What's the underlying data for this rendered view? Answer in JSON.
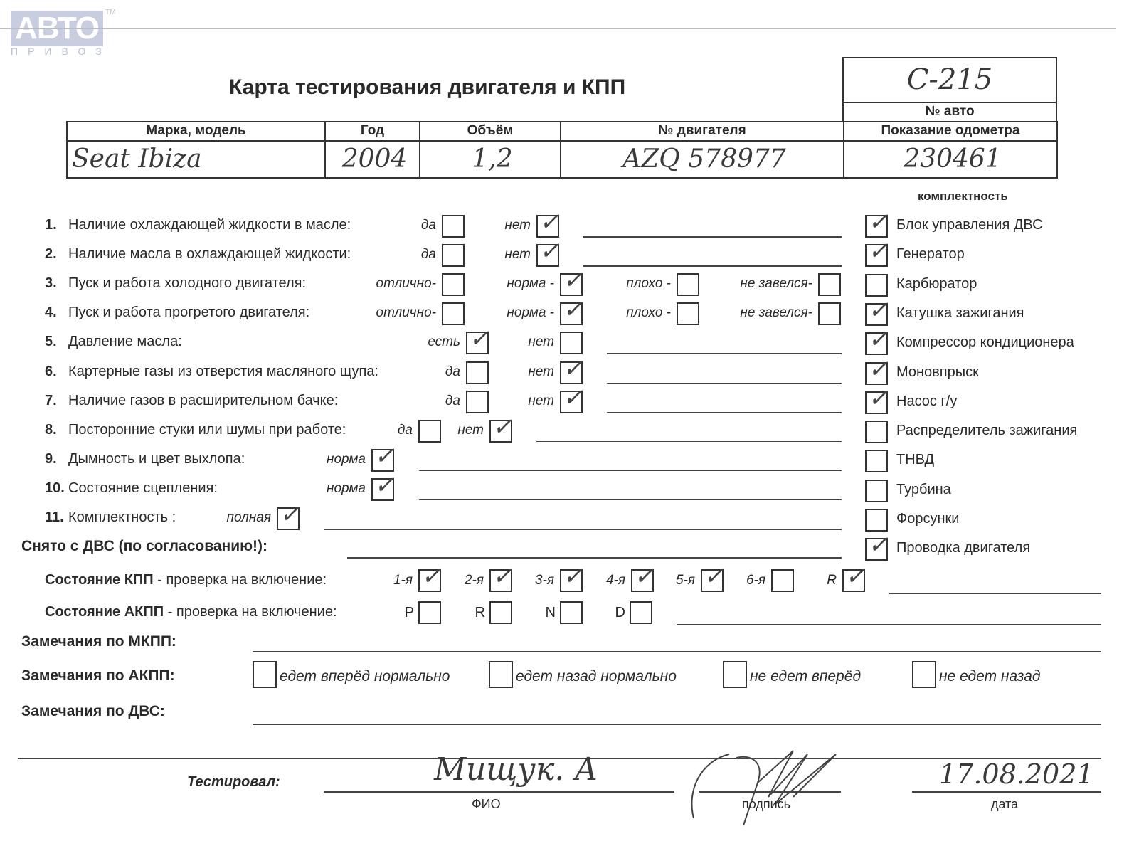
{
  "logo": {
    "text": "АВТО",
    "sub": "ПРИВОЗ",
    "tm": "TM"
  },
  "title": "Карта тестирования двигателя  и КПП",
  "car_no": {
    "value": "С-215",
    "label": "№ авто"
  },
  "table": {
    "headers": [
      "Марка, модель",
      "Год",
      "Объём",
      "№ двигателя",
      "Показание одометра"
    ],
    "values": [
      "Seat Ibiza",
      "2004",
      "1,2",
      "AZQ 578977",
      "230461"
    ]
  },
  "completeness": {
    "title": "комплектность",
    "items": [
      {
        "label": "Блок управления ДВС",
        "checked": true
      },
      {
        "label": "Генератор",
        "checked": true
      },
      {
        "label": "Карбюратор",
        "checked": false
      },
      {
        "label": "Катушка зажигания",
        "checked": true
      },
      {
        "label": "Компрессор кондиционера",
        "checked": true
      },
      {
        "label": "Моновпрыск",
        "checked": true
      },
      {
        "label": "Насос г/у",
        "checked": true
      },
      {
        "label": "Распределитель зажигания",
        "checked": false
      },
      {
        "label": "ТНВД",
        "checked": false
      },
      {
        "label": "Турбина",
        "checked": false
      },
      {
        "label": "Форсунки",
        "checked": false
      },
      {
        "label": "Проводка двигателя",
        "checked": true
      }
    ]
  },
  "questions": [
    {
      "num": "1.",
      "label": "Наличие охлаждающей жидкости в масле:",
      "options": [
        {
          "label": "да",
          "checked": false
        },
        {
          "label": "нет",
          "checked": true
        }
      ]
    },
    {
      "num": "2.",
      "label": "Наличие масла в охлаждающей жидкости:",
      "options": [
        {
          "label": "да",
          "checked": false
        },
        {
          "label": "нет",
          "checked": true
        }
      ]
    },
    {
      "num": "3.",
      "label": "Пуск и работа холодного двигателя:",
      "options": [
        {
          "label": "отлично-",
          "checked": false
        },
        {
          "label": "норма -",
          "checked": true
        },
        {
          "label": "плохо -",
          "checked": false
        },
        {
          "label": "не завелся-",
          "checked": false
        }
      ]
    },
    {
      "num": "4.",
      "label": "Пуск и работа прогретого двигателя:",
      "options": [
        {
          "label": "отлично-",
          "checked": false
        },
        {
          "label": "норма -",
          "checked": true
        },
        {
          "label": "плохо -",
          "checked": false
        },
        {
          "label": "не завелся-",
          "checked": false
        }
      ]
    },
    {
      "num": "5.",
      "label": "Давление масла:",
      "options": [
        {
          "label": "есть",
          "checked": true
        },
        {
          "label": "нет",
          "checked": false
        }
      ]
    },
    {
      "num": "6.",
      "label": "Картерные газы из отверстия масляного щупа:",
      "options": [
        {
          "label": "да",
          "checked": false
        },
        {
          "label": "нет",
          "checked": true
        }
      ]
    },
    {
      "num": "7.",
      "label": "Наличие газов в расширительном бачке:",
      "options": [
        {
          "label": "да",
          "checked": false
        },
        {
          "label": "нет",
          "checked": true
        }
      ]
    },
    {
      "num": "8.",
      "label": "Посторонние стуки или шумы при работе:",
      "options": [
        {
          "label": "да",
          "checked": false
        },
        {
          "label": "нет",
          "checked": true
        }
      ]
    },
    {
      "num": "9.",
      "label": "Дымность и цвет выхлопа:",
      "options": [
        {
          "label": "норма",
          "checked": true
        }
      ]
    },
    {
      "num": "10.",
      "label": "Состояние сцепления:",
      "options": [
        {
          "label": "норма",
          "checked": true
        }
      ]
    },
    {
      "num": "11.",
      "label": "Комплектность :",
      "options": [
        {
          "label": "полная",
          "checked": true
        }
      ]
    }
  ],
  "removed": "Снято с ДВС (по согласованию!):",
  "manual": {
    "label_bold": "Состояние КПП",
    "label_rest": " - проверка на включение:",
    "gears": [
      {
        "label": "1-я",
        "checked": true
      },
      {
        "label": "2-я",
        "checked": true
      },
      {
        "label": "3-я",
        "checked": true
      },
      {
        "label": "4-я",
        "checked": true
      },
      {
        "label": "5-я",
        "checked": true
      },
      {
        "label": "6-я",
        "checked": false
      },
      {
        "label": "R",
        "checked": true
      }
    ]
  },
  "auto": {
    "label_bold": "Состояние АКПП",
    "label_rest": " - проверка на включение:",
    "gears": [
      {
        "label": "P",
        "checked": false
      },
      {
        "label": "R",
        "checked": false
      },
      {
        "label": "N",
        "checked": false
      },
      {
        "label": "D",
        "checked": false
      }
    ]
  },
  "notes_manual": "Замечания по МКПП:",
  "notes_auto": {
    "label": "Замечания по АКПП:",
    "options": [
      {
        "label": "едет вперёд нормально",
        "checked": false
      },
      {
        "label": "едет назад нормально",
        "checked": false
      },
      {
        "label": "не едет вперёд",
        "checked": false
      },
      {
        "label": "не едет назад",
        "checked": false
      }
    ]
  },
  "notes_engine": "Замечания по ДВС:",
  "tested": {
    "label": "Тестировал:",
    "name": "Мищук. А",
    "name_caption": "ФИО",
    "signature_caption": "подпись",
    "date": "17.08.2021",
    "date_caption": "дата"
  }
}
